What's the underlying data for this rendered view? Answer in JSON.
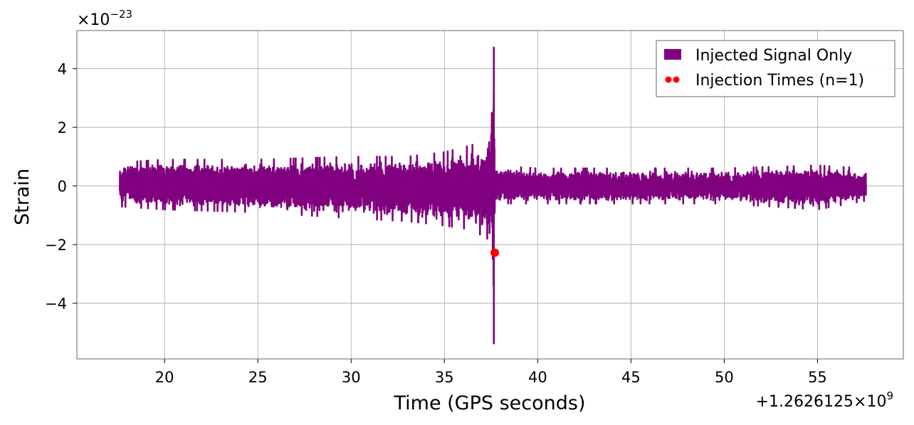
{
  "chart_data": {
    "type": "line",
    "title": "",
    "xlabel": "Time (GPS seconds)",
    "ylabel": "Strain",
    "x_offset_label": "+1.2626125×10",
    "x_offset_exponent": "9",
    "y_scale_label": "×10",
    "y_scale_exponent": "−23",
    "xlim": [
      15.3,
      59.6
    ],
    "ylim": [
      -5.9,
      5.3
    ],
    "grid": true,
    "legend_position": "top-right",
    "x_ticks": [
      20,
      25,
      30,
      35,
      40,
      45,
      50,
      55
    ],
    "x_tick_labels": [
      "20",
      "25",
      "30",
      "35",
      "40",
      "45",
      "50",
      "55"
    ],
    "y_ticks": [
      -4,
      -2,
      0,
      2,
      4
    ],
    "y_tick_labels": [
      "−4",
      "−2",
      "0",
      "2",
      "4"
    ],
    "series": [
      {
        "name": "Injected Signal Only",
        "kind": "strain_timeseries",
        "color": "#800080",
        "x_start": 17.6,
        "x_end": 57.6,
        "envelope": {
          "x": [
            17.6,
            20,
            25,
            30,
            33,
            35,
            36.5,
            37.3,
            37.6,
            37.65,
            37.7,
            40,
            45,
            50,
            55,
            57.6
          ],
          "upper": [
            0.8,
            0.9,
            0.9,
            1.0,
            1.0,
            1.15,
            1.4,
            2.0,
            2.6,
            4.75,
            0.7,
            0.6,
            0.6,
            0.6,
            0.7,
            0.6
          ],
          "lower": [
            -0.7,
            -0.8,
            -0.9,
            -1.1,
            -1.2,
            -1.35,
            -1.5,
            -1.8,
            -2.5,
            -5.4,
            -0.6,
            -0.6,
            -0.6,
            -0.6,
            -0.8,
            -0.5
          ]
        }
      },
      {
        "name": "Injection Times (n=1)",
        "kind": "markers",
        "color": "#ff0000",
        "points": [
          {
            "x": 37.7,
            "y": -2.28
          }
        ]
      }
    ]
  }
}
